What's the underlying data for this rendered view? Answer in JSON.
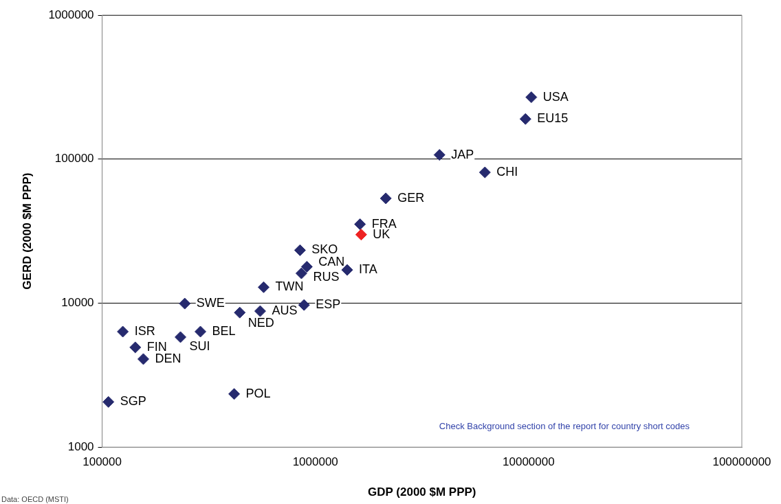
{
  "chart_data": {
    "type": "scatter",
    "xlabel": "GDP (2000 $M PPP)",
    "ylabel": "GERD (2000 $M PPP)",
    "log": "xy",
    "grid": "y",
    "legend": false,
    "marker": "diamond",
    "xlim": [
      100000,
      100000000
    ],
    "xticks": [
      100000,
      1000000,
      10000000,
      100000000
    ],
    "ylim": [
      1000,
      1000000
    ],
    "yticks": [
      1000,
      10000,
      100000,
      1000000
    ],
    "x": [
      10300000,
      9670000,
      3820000,
      6240000,
      2140000,
      1620000,
      1640000,
      847000,
      912000,
      860000,
      1410000,
      572000,
      244000,
      885000,
      551000,
      442000,
      125000,
      289000,
      233000,
      143000,
      156000,
      416000,
      107000
    ],
    "values": [
      269000,
      190000,
      107000,
      80900,
      53400,
      35300,
      29900,
      23300,
      17900,
      16100,
      17000,
      12900,
      9930,
      9710,
      8800,
      8600,
      6340,
      6340,
      5810,
      4930,
      4090,
      2340,
      2060
    ],
    "colors": [
      "#262a6e",
      "#262a6e",
      "#262a6e",
      "#262a6e",
      "#262a6e",
      "#262a6e",
      "#ee2222",
      "#262a6e",
      "#262a6e",
      "#262a6e",
      "#262a6e",
      "#262a6e",
      "#262a6e",
      "#262a6e",
      "#262a6e",
      "#262a6e",
      "#262a6e",
      "#262a6e",
      "#262a6e",
      "#262a6e",
      "#262a6e",
      "#262a6e",
      "#262a6e"
    ],
    "annotations": [
      "Check Background section of the report for country short codes",
      "Data: OECD (MSTI)",
      {
        "text": "USA",
        "x": 10300000,
        "y": 269000
      },
      {
        "text": "EU15",
        "x": 9670000,
        "y": 190000
      },
      {
        "text": "JAP",
        "x": 3820000,
        "y": 107000
      },
      {
        "text": "CHI",
        "x": 6240000,
        "y": 80900
      },
      {
        "text": "GER",
        "x": 2140000,
        "y": 53400
      },
      {
        "text": "FRA",
        "x": 1620000,
        "y": 35300
      },
      {
        "text": "UK",
        "x": 1640000,
        "y": 29900
      },
      {
        "text": "SKO",
        "x": 847000,
        "y": 23300
      },
      {
        "text": "CAN",
        "x": 912000,
        "y": 17900
      },
      {
        "text": "RUS",
        "x": 860000,
        "y": 16100
      },
      {
        "text": "ITA",
        "x": 1410000,
        "y": 17000
      },
      {
        "text": "TWN",
        "x": 572000,
        "y": 12900
      },
      {
        "text": "SWE",
        "x": 244000,
        "y": 9930
      },
      {
        "text": "ESP",
        "x": 885000,
        "y": 9710
      },
      {
        "text": "AUS",
        "x": 551000,
        "y": 8800
      },
      {
        "text": "NED",
        "x": 442000,
        "y": 8600
      },
      {
        "text": "ISR",
        "x": 125000,
        "y": 6340
      },
      {
        "text": "BEL",
        "x": 289000,
        "y": 6340
      },
      {
        "text": "SUI",
        "x": 233000,
        "y": 5810
      },
      {
        "text": "FIN",
        "x": 143000,
        "y": 4930
      },
      {
        "text": "DEN",
        "x": 156000,
        "y": 4090
      },
      {
        "text": "POL",
        "x": 416000,
        "y": 2340
      },
      {
        "text": "SGP",
        "x": 107000,
        "y": 2060
      }
    ]
  }
}
